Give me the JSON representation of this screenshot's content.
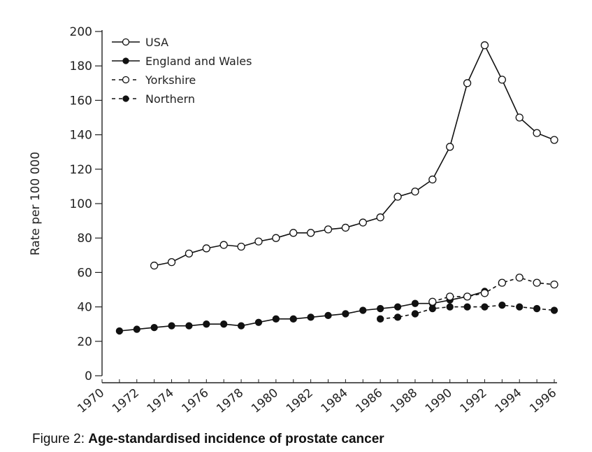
{
  "chart_data": {
    "type": "line",
    "ylabel": "Rate per 100 000",
    "xlabel": "",
    "xlim": [
      1970,
      1996
    ],
    "ylim": [
      0,
      200
    ],
    "x_ticks": [
      "1970",
      "1972",
      "1974",
      "1976",
      "1978",
      "1980",
      "1982",
      "1984",
      "1986",
      "1988",
      "1990",
      "1992",
      "1994",
      "1996"
    ],
    "y_ticks": [
      "0",
      "20",
      "40",
      "60",
      "80",
      "100",
      "120",
      "140",
      "160",
      "180",
      "200"
    ],
    "legend_position": "top-left",
    "series": [
      {
        "name": "USA",
        "line": "solid",
        "marker": "open",
        "x": [
          1973,
          1974,
          1975,
          1976,
          1977,
          1978,
          1979,
          1980,
          1981,
          1982,
          1983,
          1984,
          1985,
          1986,
          1987,
          1988,
          1989,
          1990,
          1991,
          1992,
          1993,
          1994,
          1995,
          1996
        ],
        "y": [
          64,
          66,
          71,
          74,
          76,
          75,
          78,
          80,
          83,
          83,
          85,
          86,
          89,
          92,
          104,
          107,
          114,
          133,
          170,
          192,
          172,
          150,
          141,
          137
        ]
      },
      {
        "name": "England and Wales",
        "line": "solid",
        "marker": "filled",
        "x": [
          1971,
          1972,
          1973,
          1974,
          1975,
          1976,
          1977,
          1978,
          1979,
          1980,
          1981,
          1982,
          1983,
          1984,
          1985,
          1986,
          1987,
          1988,
          1989,
          1990,
          1991,
          1992
        ],
        "y": [
          26,
          27,
          28,
          29,
          29,
          30,
          30,
          29,
          31,
          33,
          33,
          34,
          35,
          36,
          38,
          39,
          40,
          42,
          42,
          44,
          46,
          49
        ]
      },
      {
        "name": "Yorkshire",
        "line": "dashed",
        "marker": "open",
        "x": [
          1989,
          1990,
          1991,
          1992,
          1993,
          1994,
          1995,
          1996
        ],
        "y": [
          43,
          46,
          46,
          48,
          54,
          57,
          54,
          53
        ]
      },
      {
        "name": "Northern",
        "line": "dashed",
        "marker": "filled",
        "x": [
          1986,
          1987,
          1988,
          1989,
          1990,
          1991,
          1992,
          1993,
          1994,
          1995,
          1996
        ],
        "y": [
          33,
          34,
          36,
          39,
          40,
          40,
          40,
          41,
          40,
          39,
          38
        ]
      }
    ]
  },
  "caption": {
    "prefix": "Figure 2: ",
    "text": "Age-standardised incidence of prostate cancer"
  }
}
